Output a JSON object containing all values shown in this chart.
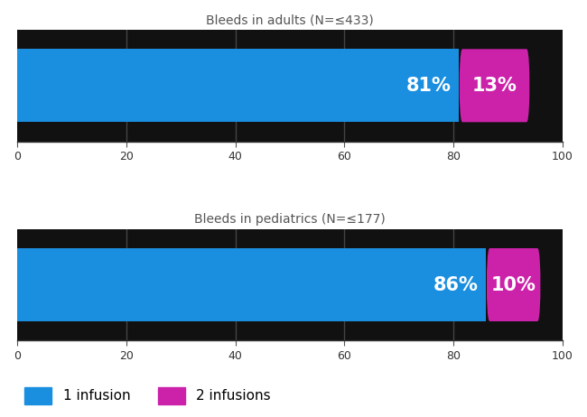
{
  "bar1_title": "Bleeds in adults (N=≤433)",
  "bar2_title": "Bleeds in pediatrics (N=≤177)",
  "bar1_val1": 81,
  "bar1_val2": 13,
  "bar2_val1": 86,
  "bar2_val2": 10,
  "label1": "81%",
  "label2": "13%",
  "label3": "86%",
  "label4": "10%",
  "color_blue": "#1a8fe0",
  "color_magenta": "#cc22aa",
  "xlim": [
    0,
    100
  ],
  "xticks": [
    0,
    20,
    40,
    60,
    80,
    100
  ],
  "legend_label1": "1 infusion",
  "legend_label2": "2 infusions",
  "title_color": "#555555",
  "title_fontsize": 10,
  "label_fontsize": 15,
  "bar_height": 0.72,
  "background_color": "#ffffff",
  "chart_bg_color": "#111111",
  "grid_color": "#444444"
}
